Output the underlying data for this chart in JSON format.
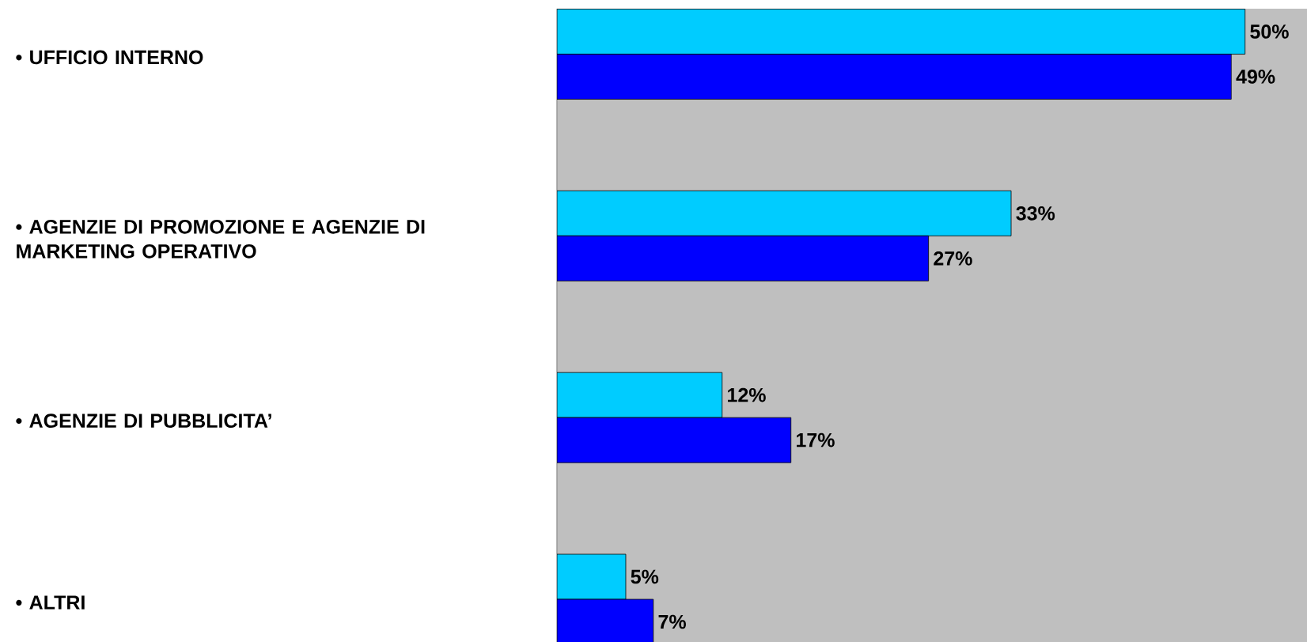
{
  "chart_data": {
    "type": "bar",
    "orientation": "horizontal",
    "categories": [
      "• UFFICIO INTERNO",
      "• AGENZIE DI PROMOZIONE E AGENZIE DI MARKETING OPERATIVO",
      "• AGENZIE DI PUBBLICITA’",
      "• ALTRI"
    ],
    "xlim": [
      0,
      54.5
    ],
    "tick_labels": "y",
    "series": [
      {
        "color": "#00ccff",
        "values": [
          50,
          33,
          12,
          5
        ],
        "value_labels": [
          "50%",
          "33%",
          "12%",
          "5%"
        ]
      },
      {
        "color": "#0000ff",
        "values": [
          49,
          27,
          17,
          7
        ],
        "value_labels": [
          "49%",
          "27%",
          "17%",
          "7%"
        ]
      }
    ]
  }
}
